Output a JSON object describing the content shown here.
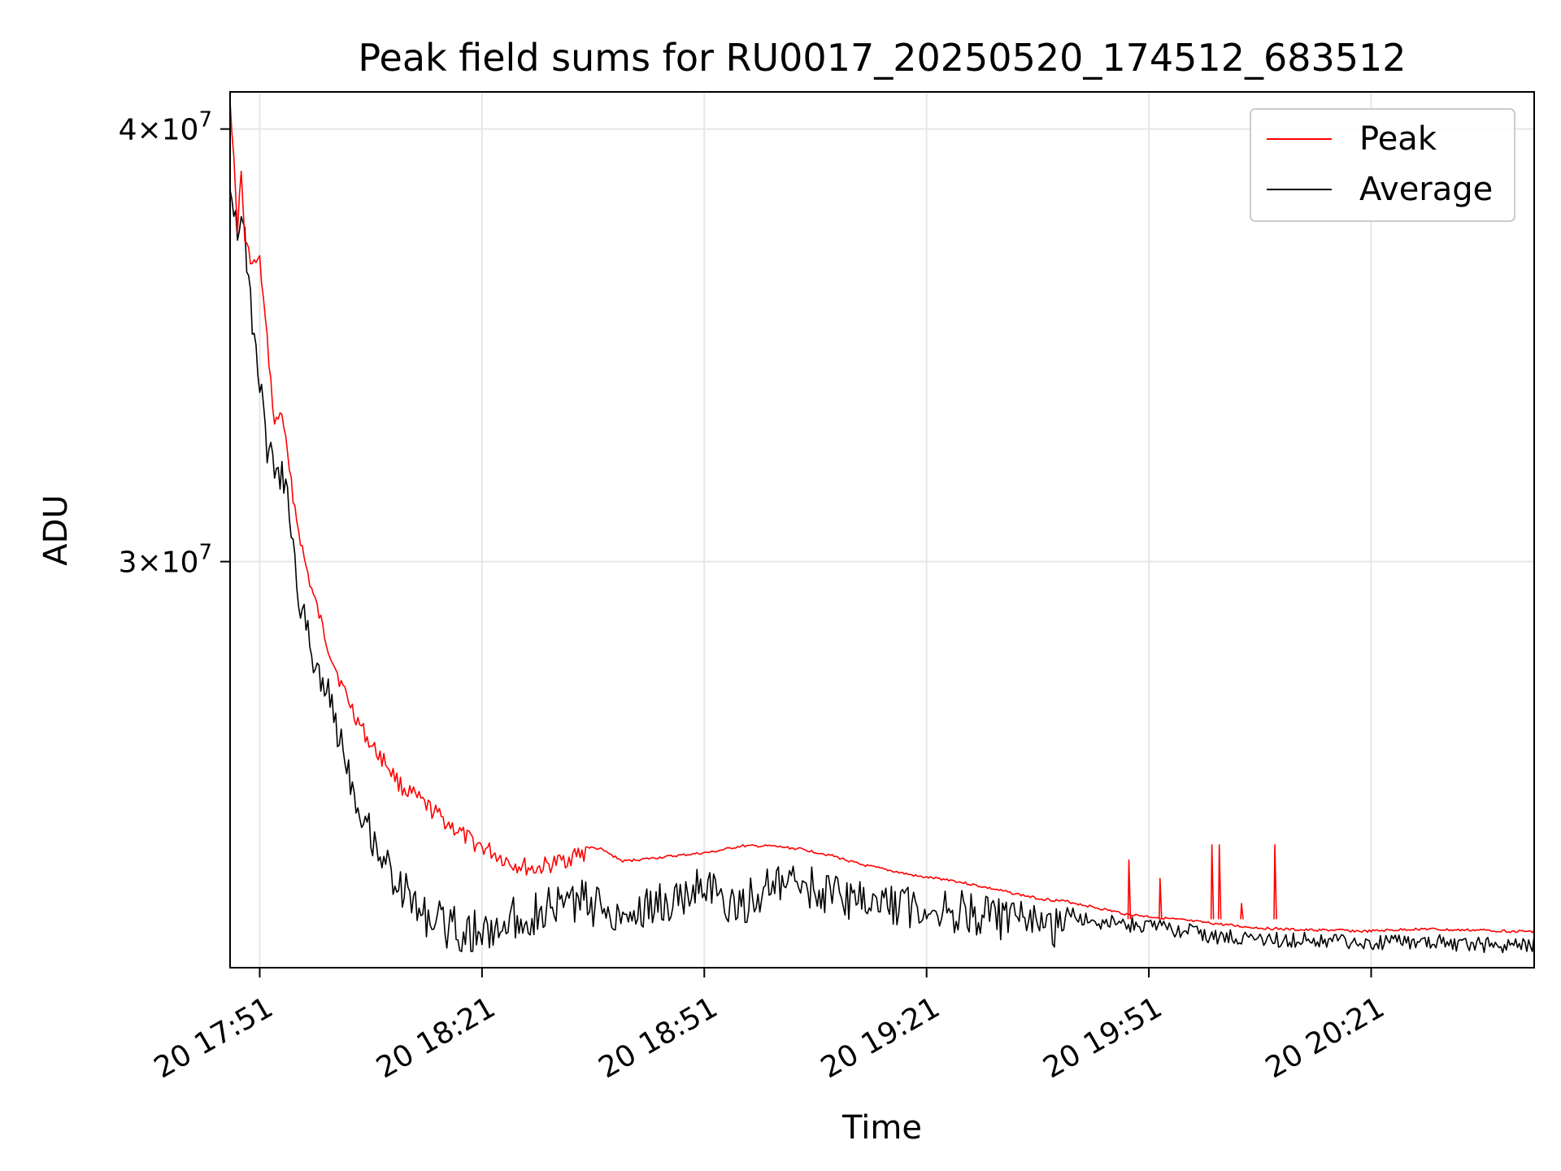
{
  "chart_data": {
    "type": "line",
    "title": "Peak field sums for RU0017_20250520_174512_683512",
    "xlabel": "Time",
    "ylabel": "ADU",
    "x_unit": "time of day (HH:MM), 2025-05-20",
    "xlim": [
      "17:47",
      "20:43"
    ],
    "ylim": [
      22900000,
      41000000
    ],
    "y_scale": "log",
    "grid": true,
    "legend_position": "top-right",
    "x_ticks": [
      "17:51",
      "18:21",
      "18:51",
      "19:21",
      "19:51",
      "20:21"
    ],
    "x_tick_labels": [
      "20 17:51",
      "20 18:21",
      "20 18:51",
      "20 19:21",
      "20 19:51",
      "20 20:21"
    ],
    "y_ticks": [
      {
        "value": 40000000,
        "mantissa": "4",
        "base": "10",
        "exp": "7"
      },
      {
        "value": 30000000,
        "mantissa": "3",
        "base": "10",
        "exp": "7"
      }
    ],
    "series": [
      {
        "name": "Peak",
        "color": "#ff0000",
        "points": [
          [
            "17:47",
            41000000
          ],
          [
            "17:48",
            37600000
          ],
          [
            "17:48.5",
            39000000
          ],
          [
            "17:49",
            37300000
          ],
          [
            "17:50",
            36700000
          ],
          [
            "17:51",
            36800000
          ],
          [
            "17:53",
            33000000
          ],
          [
            "17:54",
            33300000
          ],
          [
            "17:55",
            32000000
          ],
          [
            "17:56",
            31000000
          ],
          [
            "17:57",
            30200000
          ],
          [
            "17:58",
            29600000
          ],
          [
            "18:00",
            28600000
          ],
          [
            "18:02",
            27800000
          ],
          [
            "18:04",
            27200000
          ],
          [
            "18:06",
            26700000
          ],
          [
            "18:08",
            26400000
          ],
          [
            "18:10",
            26000000
          ],
          [
            "18:13",
            25700000
          ],
          [
            "18:16",
            25400000
          ],
          [
            "18:19",
            25100000
          ],
          [
            "18:22",
            24900000
          ],
          [
            "18:25",
            24700000
          ],
          [
            "18:28",
            24600000
          ],
          [
            "18:31",
            24700000
          ],
          [
            "18:34",
            24850000
          ],
          [
            "18:37",
            24800000
          ],
          [
            "18:40",
            24600000
          ],
          [
            "18:44",
            24650000
          ],
          [
            "18:48",
            24700000
          ],
          [
            "18:52",
            24750000
          ],
          [
            "18:56",
            24850000
          ],
          [
            "19:00",
            24850000
          ],
          [
            "19:04",
            24800000
          ],
          [
            "19:08",
            24700000
          ],
          [
            "19:12",
            24550000
          ],
          [
            "19:16",
            24450000
          ],
          [
            "19:20",
            24350000
          ],
          [
            "19:24",
            24300000
          ],
          [
            "19:28",
            24200000
          ],
          [
            "19:32",
            24100000
          ],
          [
            "19:36",
            24000000
          ],
          [
            "19:40",
            23950000
          ],
          [
            "19:44",
            23850000
          ],
          [
            "19:48",
            23750000
          ],
          [
            "19:52",
            23700000
          ],
          [
            "19:56",
            23650000
          ],
          [
            "20:00",
            23600000
          ],
          [
            "20:04",
            23550000
          ],
          [
            "20:08",
            23520000
          ],
          [
            "20:12",
            23500000
          ],
          [
            "20:16",
            23500000
          ],
          [
            "20:20",
            23480000
          ],
          [
            "20:24",
            23500000
          ],
          [
            "20:28",
            23520000
          ],
          [
            "20:32",
            23500000
          ],
          [
            "20:36",
            23500000
          ],
          [
            "20:40",
            23480000
          ],
          [
            "20:43",
            23480000
          ]
        ],
        "spikes": [
          [
            "19:48.3",
            24600000
          ],
          [
            "19:52.5",
            24300000
          ],
          [
            "19:59.5",
            24850000
          ],
          [
            "20:00.5",
            24850000
          ],
          [
            "20:03.5",
            23900000
          ],
          [
            "20:08",
            24850000
          ]
        ]
      },
      {
        "name": "Average",
        "color": "#000000",
        "points": [
          [
            "17:47",
            39000000
          ],
          [
            "17:48",
            37800000
          ],
          [
            "17:48.5",
            38100000
          ],
          [
            "17:49",
            37500000
          ],
          [
            "17:50",
            35500000
          ],
          [
            "17:51",
            34200000
          ],
          [
            "17:52",
            32700000
          ],
          [
            "17:53",
            32300000
          ],
          [
            "17:54",
            32100000
          ],
          [
            "17:55",
            31500000
          ],
          [
            "17:56",
            29800000
          ],
          [
            "17:57",
            29200000
          ],
          [
            "17:58",
            28600000
          ],
          [
            "18:00",
            27900000
          ],
          [
            "18:02",
            27000000
          ],
          [
            "18:04",
            26000000
          ],
          [
            "18:06",
            25400000
          ],
          [
            "18:08",
            24900000
          ],
          [
            "18:10",
            24500000
          ],
          [
            "18:13",
            24100000
          ],
          [
            "18:16",
            23900000
          ],
          [
            "18:19",
            23800000
          ],
          [
            "18:22",
            23800000
          ],
          [
            "18:25",
            24000000
          ],
          [
            "18:28",
            24100000
          ],
          [
            "18:31",
            24200000
          ],
          [
            "18:34",
            24300000
          ],
          [
            "18:37",
            24200000
          ],
          [
            "18:40",
            24100000
          ],
          [
            "18:44",
            24200000
          ],
          [
            "18:48",
            24300000
          ],
          [
            "18:51",
            24650000
          ],
          [
            "18:54",
            24150000
          ],
          [
            "18:56",
            24250000
          ],
          [
            "19:00",
            24500000
          ],
          [
            "19:04",
            24550000
          ],
          [
            "19:08",
            24400000
          ],
          [
            "19:12",
            24300000
          ],
          [
            "19:16",
            24250000
          ],
          [
            "19:20",
            24200000
          ],
          [
            "19:24",
            24150000
          ],
          [
            "19:28",
            24050000
          ],
          [
            "19:32",
            24000000
          ],
          [
            "19:36",
            23900000
          ],
          [
            "19:40",
            23850000
          ],
          [
            "19:44",
            23750000
          ],
          [
            "19:48",
            23700000
          ],
          [
            "19:52",
            23650000
          ],
          [
            "19:56",
            23600000
          ],
          [
            "20:00",
            23500000
          ],
          [
            "20:04",
            23480000
          ],
          [
            "20:08",
            23450000
          ],
          [
            "20:12",
            23450000
          ],
          [
            "20:16",
            23430000
          ],
          [
            "20:20",
            23420000
          ],
          [
            "20:24",
            23400000
          ],
          [
            "20:28",
            23420000
          ],
          [
            "20:32",
            23400000
          ],
          [
            "20:36",
            23380000
          ],
          [
            "20:40",
            23350000
          ],
          [
            "20:43",
            23400000
          ]
        ]
      }
    ]
  }
}
